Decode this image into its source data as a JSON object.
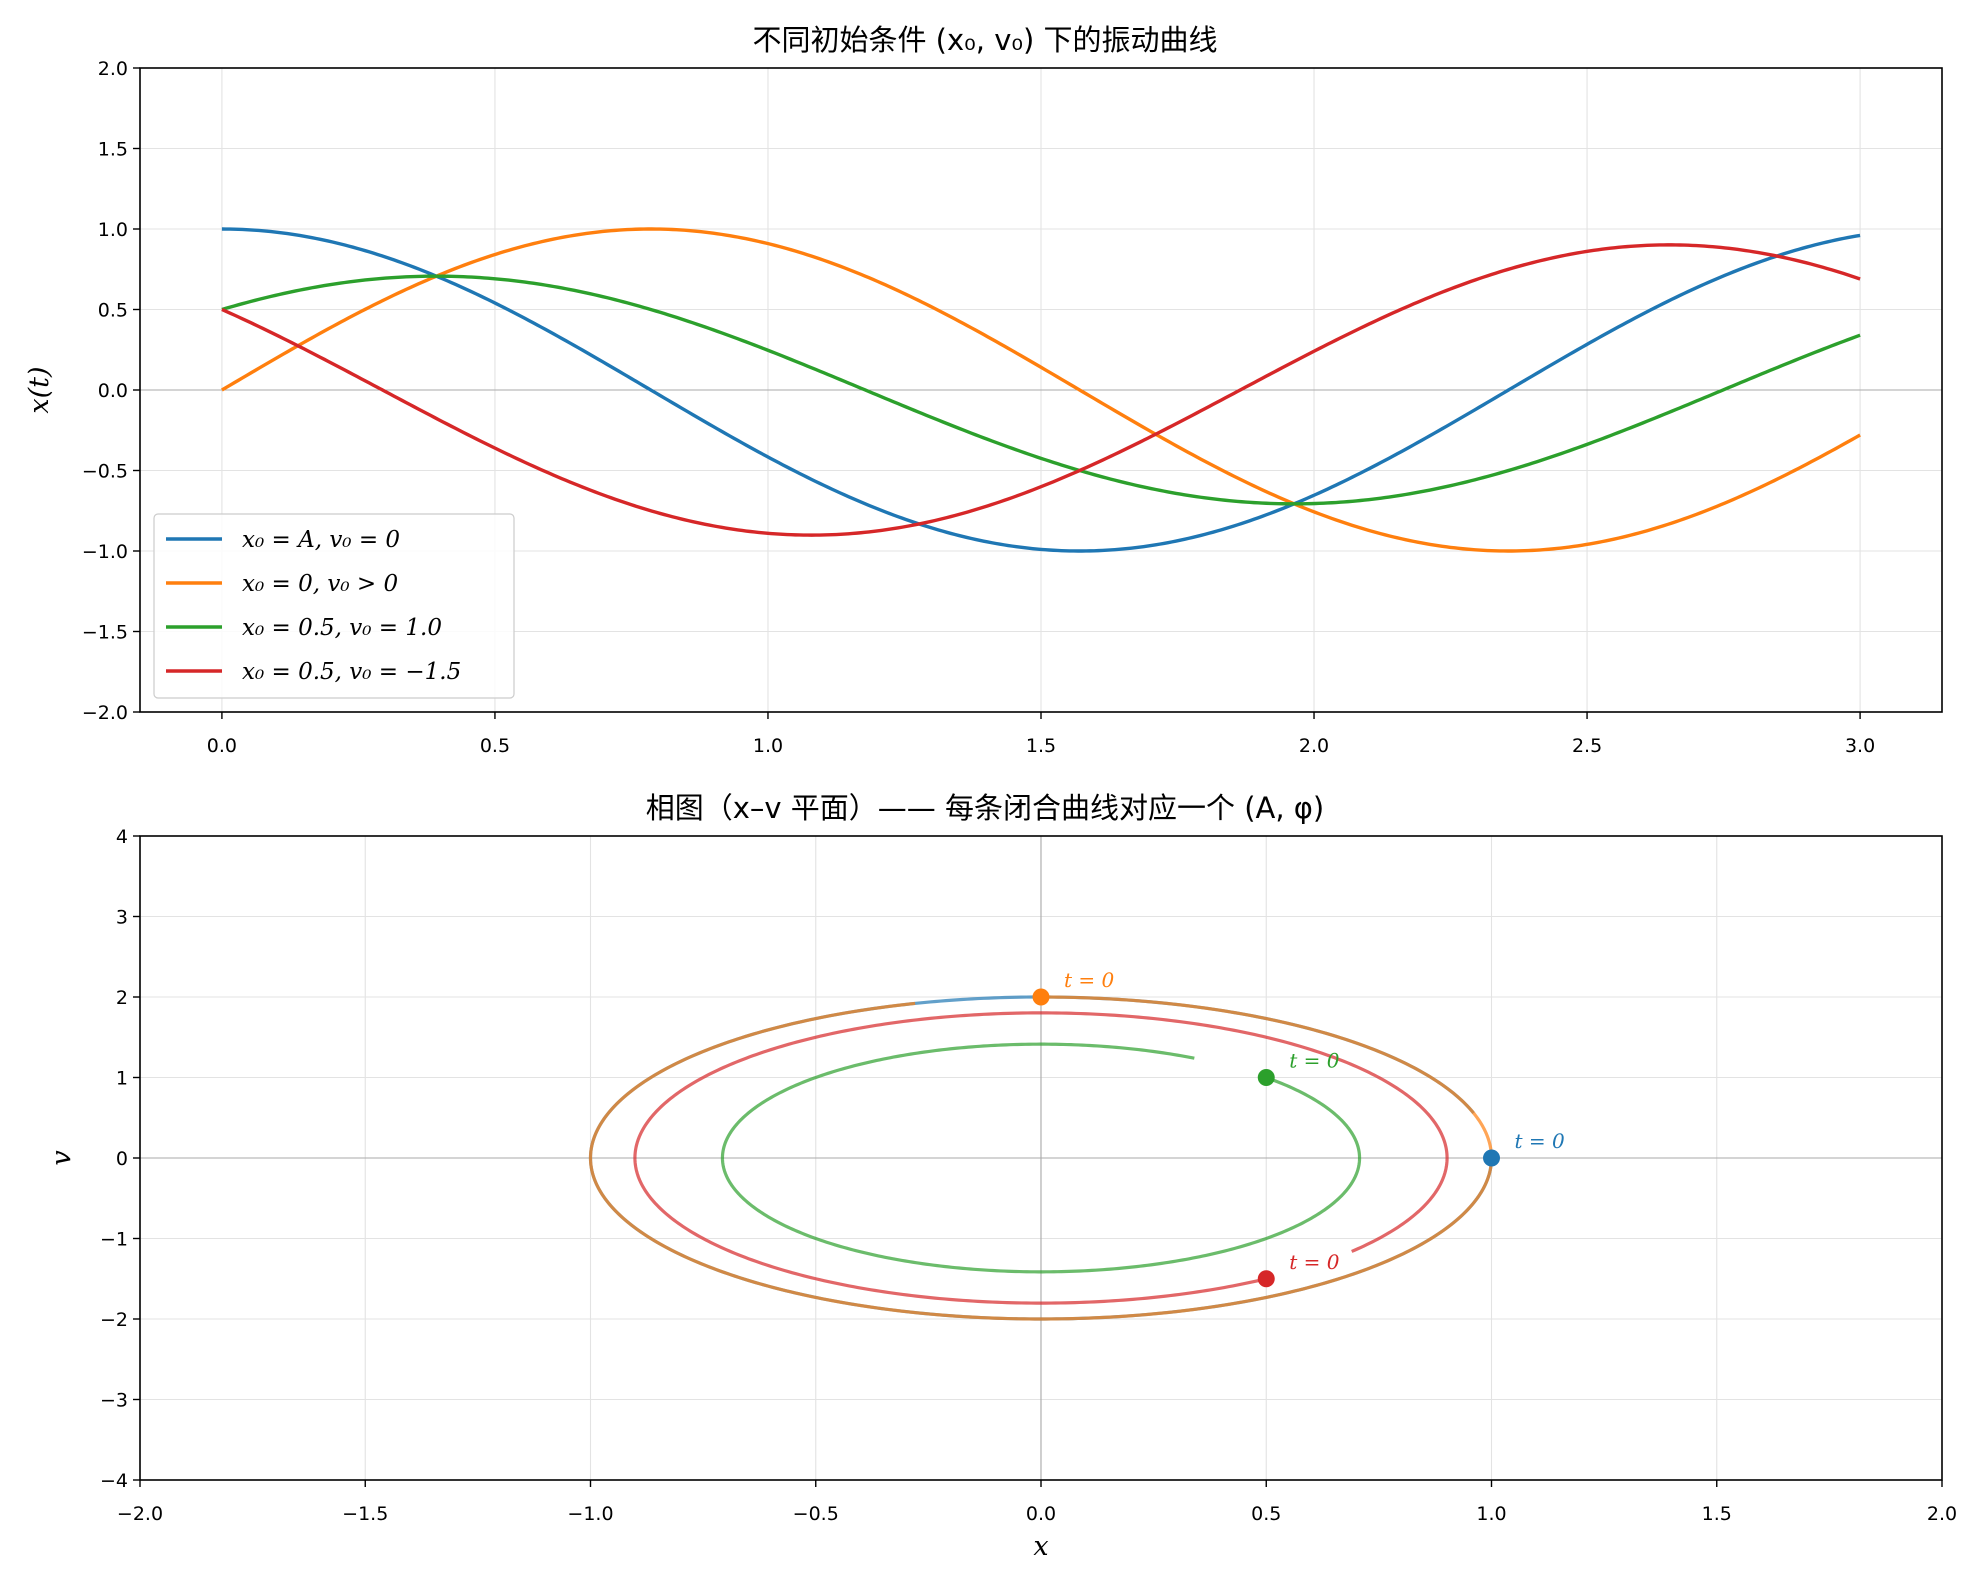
{
  "chart_data": [
    {
      "type": "line",
      "title": "不同初始条件 (x₀, v₀) 下的振动曲线",
      "xlabel": "",
      "ylabel": "x(t)",
      "xlim": [
        -0.15,
        3.15
      ],
      "ylim": [
        -2.0,
        2.0
      ],
      "xticks": [
        "0.0",
        "0.5",
        "1.0",
        "1.5",
        "2.0",
        "2.5",
        "3.0"
      ],
      "yticks": [
        "−2.0",
        "−1.5",
        "−1.0",
        "−0.5",
        "0.0",
        "0.5",
        "1.0",
        "1.5",
        "2.0"
      ],
      "grid": true,
      "legend": "lower-left",
      "omega": 2.0,
      "t_range": [
        0,
        3
      ],
      "series": [
        {
          "name": "x₀ = A, v₀ = 0",
          "x0": 1.0,
          "v0": 0.0,
          "color": "#1f77b4"
        },
        {
          "name": "x₀ = 0, v₀ > 0",
          "x0": 0.0,
          "v0": 2.0,
          "color": "#ff7f0e"
        },
        {
          "name": "x₀ = 0.5, v₀ = 1.0",
          "x0": 0.5,
          "v0": 1.0,
          "color": "#2ca02c"
        },
        {
          "name": "x₀ = 0.5, v₀ = −1.5",
          "x0": 0.5,
          "v0": -1.5,
          "color": "#d62728"
        }
      ]
    },
    {
      "type": "line",
      "title": "相图（x–v 平面）—— 每条闭合曲线对应一个 (A, φ)",
      "xlabel": "x",
      "ylabel": "v",
      "xlim": [
        -2.0,
        2.0
      ],
      "ylim": [
        -4.0,
        4.0
      ],
      "xticks": [
        "−2.0",
        "−1.5",
        "−1.0",
        "−0.5",
        "0.0",
        "0.5",
        "1.0",
        "1.5",
        "2.0"
      ],
      "yticks": [
        "−4",
        "−3",
        "−2",
        "−1",
        "0",
        "1",
        "2",
        "3",
        "4"
      ],
      "grid": true,
      "start_label": "t = 0",
      "points": [
        {
          "x": 1.0,
          "v": 0.0,
          "color": "#1f77b4"
        },
        {
          "x": 0.0,
          "v": 2.0,
          "color": "#ff7f0e"
        },
        {
          "x": 0.5,
          "v": 1.0,
          "color": "#2ca02c"
        },
        {
          "x": 0.5,
          "v": -1.5,
          "color": "#d62728"
        }
      ]
    }
  ]
}
